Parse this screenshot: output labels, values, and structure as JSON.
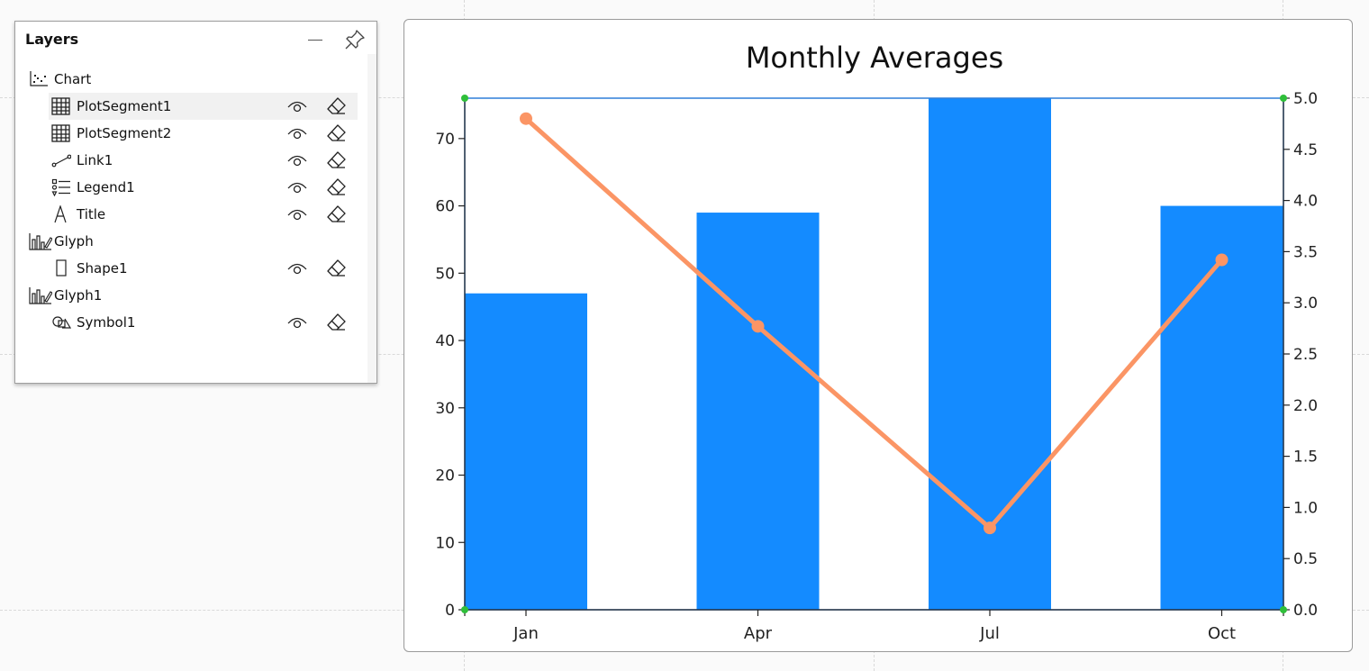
{
  "layers_panel": {
    "title": "Layers",
    "items": [
      {
        "label": "Chart",
        "icon": "chart-icon",
        "level": 0,
        "actions": false,
        "selected": false
      },
      {
        "label": "PlotSegment1",
        "icon": "grid-icon",
        "level": 1,
        "actions": true,
        "selected": true
      },
      {
        "label": "PlotSegment2",
        "icon": "grid-icon",
        "level": 1,
        "actions": true,
        "selected": false
      },
      {
        "label": "Link1",
        "icon": "link-icon",
        "level": 1,
        "actions": true,
        "selected": false
      },
      {
        "label": "Legend1",
        "icon": "legend-icon",
        "level": 1,
        "actions": true,
        "selected": false
      },
      {
        "label": "Title",
        "icon": "text-icon",
        "level": 1,
        "actions": true,
        "selected": false
      },
      {
        "label": "Glyph",
        "icon": "glyph-icon",
        "level": 0,
        "actions": false,
        "selected": false
      },
      {
        "label": "Shape1",
        "icon": "rectangle-icon",
        "level": 1,
        "actions": true,
        "selected": false
      },
      {
        "label": "Glyph1",
        "icon": "glyph-icon",
        "level": 0,
        "actions": false,
        "selected": false
      },
      {
        "label": "Symbol1",
        "icon": "symbol-icon",
        "level": 1,
        "actions": true,
        "selected": false
      }
    ]
  },
  "chart_data": {
    "type": "bar",
    "title": "Monthly Averages",
    "categories": [
      "Jan",
      "Apr",
      "Jul",
      "Oct"
    ],
    "series": [
      {
        "type": "bar",
        "axis": "left",
        "color": "#148bff",
        "values": [
          47,
          59,
          76,
          60
        ]
      },
      {
        "type": "line",
        "axis": "right",
        "color": "#fb9565",
        "values": [
          4.8,
          2.77,
          0.8,
          3.42
        ]
      }
    ],
    "y_left": {
      "min": 0,
      "max": 76,
      "ticks": [
        0,
        10,
        20,
        30,
        40,
        50,
        60,
        70
      ]
    },
    "y_right": {
      "min": 0,
      "max": 5,
      "ticks": [
        "0.0",
        "0.5",
        "1.0",
        "1.5",
        "2.0",
        "2.5",
        "3.0",
        "3.5",
        "4.0",
        "4.5",
        "5.0"
      ]
    },
    "xlabel": "",
    "ylabel": "",
    "grid": false,
    "selection_color": "#2f7fd8",
    "handle_color": "#2fbf3a"
  }
}
